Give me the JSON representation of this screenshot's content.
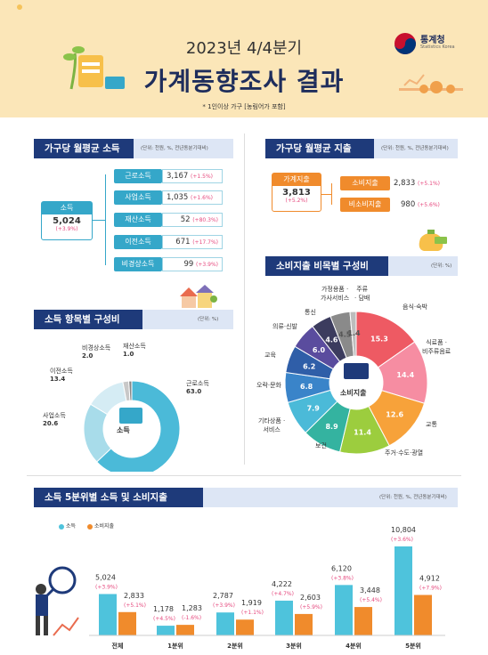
{
  "header": {
    "subtitle": "2023년 4/4분기",
    "title": "가계동향조사 결과",
    "note": "* 1인이상 가구 [농림어가 포함]",
    "logo_name": "통계청",
    "logo_sub": "Statistics Korea"
  },
  "colors": {
    "navy": "#1e3a7a",
    "teal": "#35a7c9",
    "orange": "#f08b2c",
    "pink": "#e6497e"
  },
  "income": {
    "section_title": "가구당 월평균 소득",
    "unit": "(단위: 천원, %, 전년동분기대비)",
    "total": {
      "label": "소득",
      "value": "5,024",
      "change": "(+3.9%)"
    },
    "items": [
      {
        "label": "근로소득",
        "value": "3,167",
        "change": "(+1.5%)"
      },
      {
        "label": "사업소득",
        "value": "1,035",
        "change": "(+1.6%)"
      },
      {
        "label": "재산소득",
        "value": "52",
        "change": "(+80.3%)"
      },
      {
        "label": "이전소득",
        "value": "671",
        "change": "(+17.7%)"
      },
      {
        "label": "비경상소득",
        "value": "99",
        "change": "(+3.9%)"
      }
    ]
  },
  "expense": {
    "section_title": "가구당 월평균 지출",
    "unit": "(단위: 천원, %, 전년동분기대비)",
    "total": {
      "label": "가계지출",
      "value": "3,813",
      "change": "(+5.2%)"
    },
    "items": [
      {
        "label": "소비지출",
        "value": "2,833",
        "change": "(+5.1%)"
      },
      {
        "label": "비소비지출",
        "value": "980",
        "change": "(+5.6%)"
      }
    ]
  },
  "chart_data": [
    {
      "type": "pie",
      "title": "소득 항목별 구성비",
      "unit": "(단위: %)",
      "center_label": "소득",
      "labels": [
        "근로소득",
        "사업소득",
        "이전소득",
        "비경상소득",
        "재산소득"
      ],
      "values": [
        63.0,
        20.6,
        13.4,
        2.0,
        1.0
      ],
      "value_labels": [
        "63.0",
        "20.6",
        "13.4",
        "2.0",
        "1.0"
      ],
      "colors": [
        "#4bbad8",
        "#a8dcea",
        "#d5ecf4",
        "#c8c8c8",
        "#888888"
      ]
    },
    {
      "type": "pie",
      "title": "소비지출 비목별 구성비",
      "unit": "(단위: %)",
      "center_label": "소비지출",
      "labels": [
        "음식·숙박",
        "식료품·비주류음료",
        "교통",
        "주거·수도·광열",
        "보건",
        "기타상품·서비스",
        "오락·문화",
        "교육",
        "의류·신발",
        "통신",
        "가정용품·가사서비스",
        "주류·담배"
      ],
      "values": [
        15.3,
        14.4,
        12.6,
        11.4,
        8.9,
        7.9,
        6.8,
        6.2,
        6.0,
        4.6,
        4.5,
        1.4
      ],
      "value_labels": [
        "15.3",
        "14.4",
        "12.6",
        "11.4",
        "8.9",
        "7.9",
        "6.8",
        "6.2",
        "6.0",
        "4.6",
        "4.5",
        "1.4"
      ],
      "colors": [
        "#ee5a63",
        "#f68da2",
        "#f7a23a",
        "#9ccd3e",
        "#34b3a0",
        "#4bbad8",
        "#3a84c9",
        "#2f5ea8",
        "#5a4c9e",
        "#3c3c5e",
        "#8a8a8a",
        "#bdbdbd"
      ]
    },
    {
      "type": "bar",
      "title": "소득 5분위별 소득 및 소비지출",
      "unit": "(단위: 천원, %, 전년동분기대비)",
      "categories": [
        "전체",
        "1분위",
        "2분위",
        "3분위",
        "4분위",
        "5분위"
      ],
      "series": [
        {
          "name": "소득",
          "color": "#4ec3dc",
          "values": [
            5024,
            1178,
            2787,
            4222,
            6120,
            10804
          ],
          "value_labels": [
            "5,024",
            "1,178",
            "2,787",
            "4,222",
            "6,120",
            "10,804"
          ],
          "changes": [
            "(+3.9%)",
            "(+4.5%)",
            "(+3.9%)",
            "(+4.7%)",
            "(+3.8%)",
            "(+3.6%)"
          ]
        },
        {
          "name": "소비지출",
          "color": "#f08b2c",
          "values": [
            2833,
            1283,
            1919,
            2603,
            3448,
            4912
          ],
          "value_labels": [
            "2,833",
            "1,283",
            "1,919",
            "2,603",
            "3,448",
            "4,912"
          ],
          "changes": [
            "(+5.1%)",
            "(-1.6%)",
            "(+1.1%)",
            "(+5.9%)",
            "(+5.4%)",
            "(+7.9%)"
          ]
        }
      ]
    }
  ]
}
